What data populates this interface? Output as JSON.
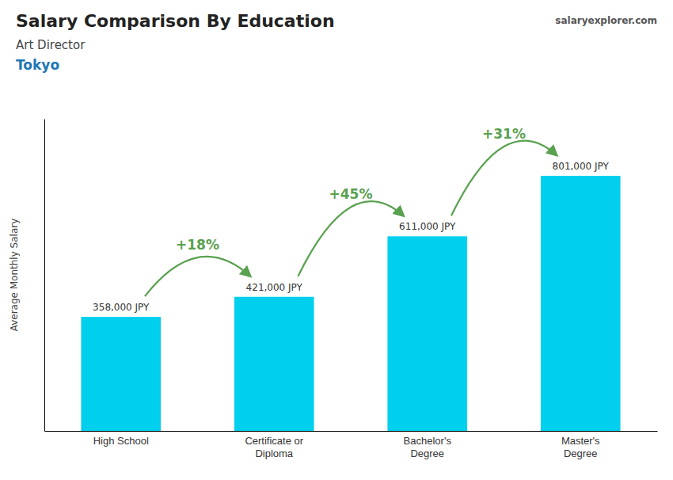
{
  "chart_data": {
    "type": "bar",
    "title": "Salary Comparison By Education",
    "subtitle": [
      "Art Director",
      "Tokyo"
    ],
    "source": "salaryexplorer.com",
    "y_label": "Average Monthly Salary",
    "categories": [
      "High School",
      "Certificate or\nDiploma",
      "Bachelor's\nDegree",
      "Master's\nDegree"
    ],
    "values": [
      358000,
      421000,
      611000,
      801000
    ],
    "value_labels": [
      "358,000 JPY",
      "421,000 JPY",
      "611,000 JPY",
      "801,000 JPY"
    ],
    "data_labels": true,
    "annotations": [
      "+18%",
      "+45%",
      "+31%"
    ],
    "color": "#00cfee",
    "ylim": [
      0,
      980000
    ],
    "grid": false,
    "tick_labels": "x"
  }
}
